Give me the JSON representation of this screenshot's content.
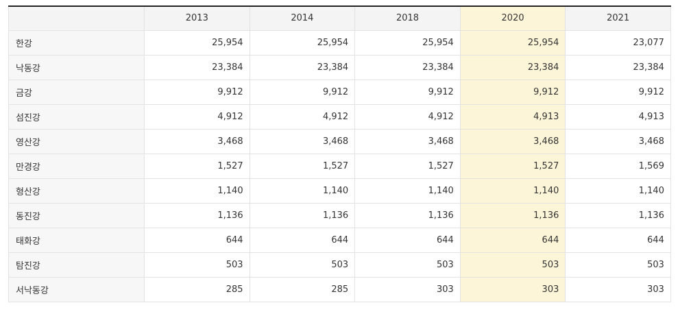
{
  "table": {
    "corner": "",
    "columns": [
      "2013",
      "2014",
      "2018",
      "2020",
      "2021"
    ],
    "highlight_column": "2020",
    "highlight_color": "#fdf5d8",
    "rows": [
      {
        "label": "한강",
        "values": [
          "25,954",
          "25,954",
          "25,954",
          "25,954",
          "23,077"
        ]
      },
      {
        "label": "낙동강",
        "values": [
          "23,384",
          "23,384",
          "23,384",
          "23,384",
          "23,384"
        ]
      },
      {
        "label": "금강",
        "values": [
          "9,912",
          "9,912",
          "9,912",
          "9,912",
          "9,912"
        ]
      },
      {
        "label": "섬진강",
        "values": [
          "4,912",
          "4,912",
          "4,912",
          "4,913",
          "4,913"
        ]
      },
      {
        "label": "영산강",
        "values": [
          "3,468",
          "3,468",
          "3,468",
          "3,468",
          "3,468"
        ]
      },
      {
        "label": "만경강",
        "values": [
          "1,527",
          "1,527",
          "1,527",
          "1,527",
          "1,569"
        ]
      },
      {
        "label": "형산강",
        "values": [
          "1,140",
          "1,140",
          "1,140",
          "1,140",
          "1,140"
        ]
      },
      {
        "label": "동진강",
        "values": [
          "1,136",
          "1,136",
          "1,136",
          "1,136",
          "1,136"
        ]
      },
      {
        "label": "태화강",
        "values": [
          "644",
          "644",
          "644",
          "644",
          "644"
        ]
      },
      {
        "label": "탐진강",
        "values": [
          "503",
          "503",
          "503",
          "503",
          "503"
        ]
      },
      {
        "label": "서낙동강",
        "values": [
          "285",
          "285",
          "303",
          "303",
          "303"
        ]
      }
    ]
  }
}
